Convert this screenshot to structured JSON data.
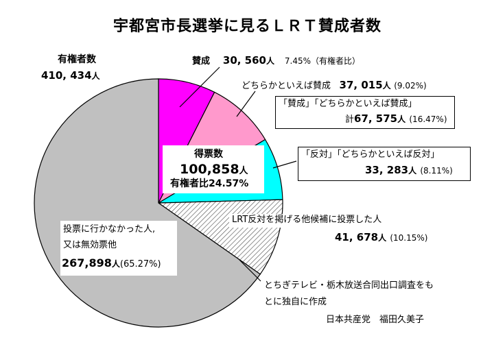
{
  "chart_data": {
    "type": "pie",
    "title": "宇都宮市長選挙に見るＬＲＴ賛成者数",
    "total": {
      "label": "有権者数",
      "value": "410, 434",
      "unit": "人"
    },
    "slices": [
      {
        "name": "賛成",
        "value": 30560,
        "percent": 7.45,
        "color": "#ff00ff"
      },
      {
        "name": "どちらかといえば賛成",
        "value": 37015,
        "percent": 9.02,
        "color": "#ff99cc"
      },
      {
        "name": "「反対」「どちらかといえば反対」",
        "value": 33283,
        "percent": 8.11,
        "color": "#00ffff"
      },
      {
        "name": "LRT反対を掲げる他候補に投票した人",
        "value": 41678,
        "percent": 10.15,
        "color": "hatch"
      },
      {
        "name": "投票に行かなかった人、又は無効票他",
        "value": 267898,
        "percent": 65.27,
        "color": "#c0c0c0"
      }
    ],
    "labels": {
      "total_label": "有権者数",
      "total_value": "410, 434",
      "unit": "人",
      "sansei_name": "賛成",
      "sansei_value": "30, 560",
      "sansei_pct": "7.45%（有権者比）",
      "dochira_sansei_name": "どちらかといえば賛成",
      "dochira_sansei_value": "37, 015",
      "dochira_sansei_pct": "(9.02%)",
      "combined_line1": "「賛成」「どちらかといえば賛成」",
      "combined_prefix": "計",
      "combined_value": "67, 575",
      "combined_pct": "(16.47%)",
      "hantai_line1": "「反対」「どちらかといえば反対」",
      "hantai_value": "33, 283",
      "hantai_pct": "(8.11%)",
      "other_line1": "LRT反対を掲げる他候補に投票した人",
      "other_value": "41, 678",
      "other_pct": "(10.15%)",
      "tokuhyo_label": "得票数",
      "tokuhyo_value": "100,858",
      "tokuhyo_ratio": "有権者比24.57%",
      "absent_line1": "投票に行かなかった人,",
      "absent_line2": "又は無効票他",
      "absent_value": "267,898",
      "absent_pct": "(65.27%)",
      "source_line1": "とちぎテレビ・栃木放送合同出口調査をも",
      "source_line2": "とに独自に作成",
      "author": "日本共産党　福田久美子"
    }
  }
}
